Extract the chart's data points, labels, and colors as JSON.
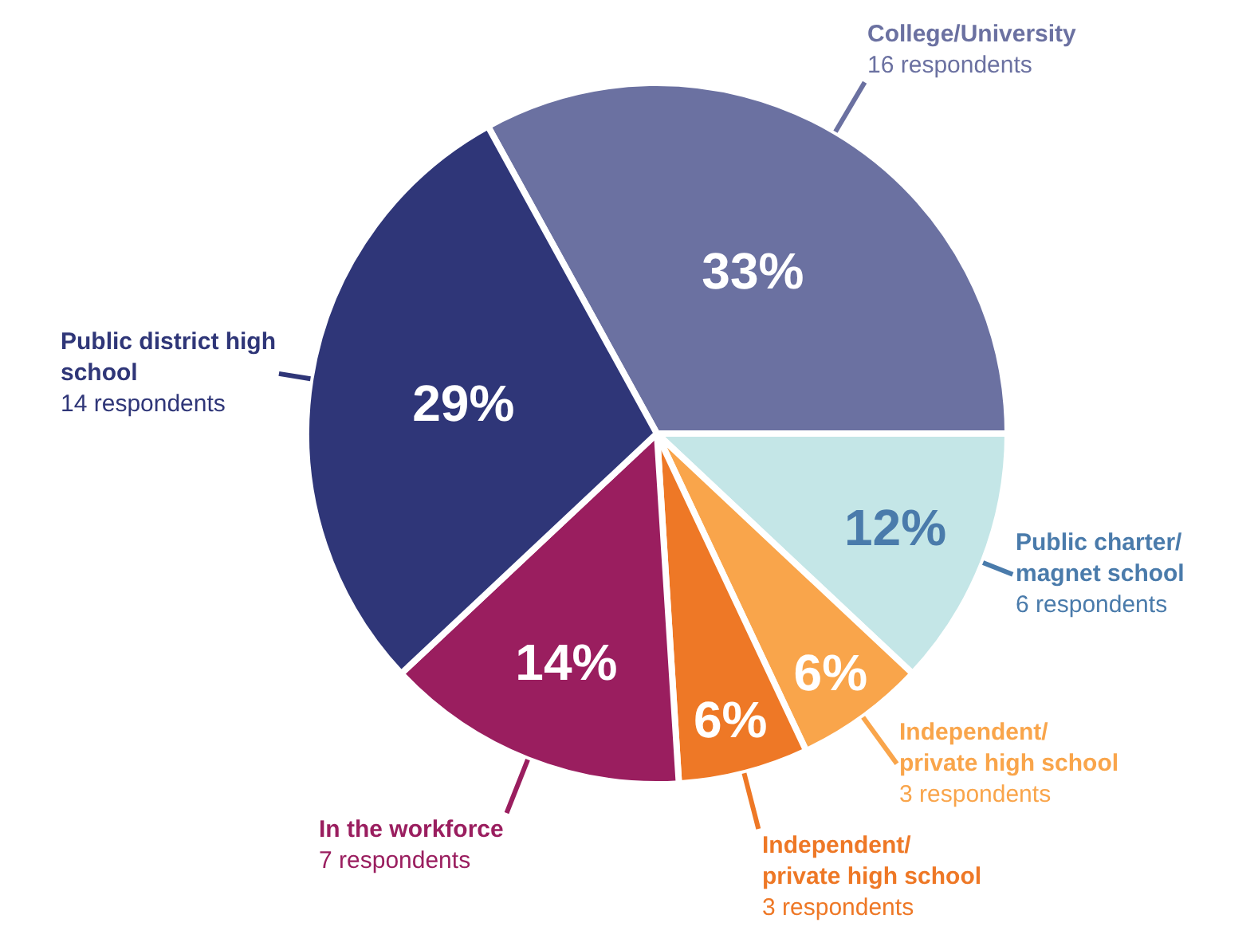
{
  "chart_data": {
    "type": "pie",
    "categories": [
      "College/University",
      "Public charter/magnet school",
      "Independent/private high school",
      "Independent/private high school",
      "In the workforce",
      "Public district high school"
    ],
    "values": [
      33,
      12,
      6,
      6,
      14,
      29
    ],
    "value_labels": [
      "33%",
      "12%",
      "6%",
      "6%",
      "14%",
      "29%"
    ],
    "colors": [
      "#6b71a1",
      "#c4e6e7",
      "#f9a54b",
      "#ee7826",
      "#9a1e5f",
      "#2f3678"
    ],
    "annotations": [
      "16 respondents",
      "6 respondents",
      "3 respondents",
      "3 respondents",
      "7 respondents",
      "14 respondents"
    ]
  }
}
